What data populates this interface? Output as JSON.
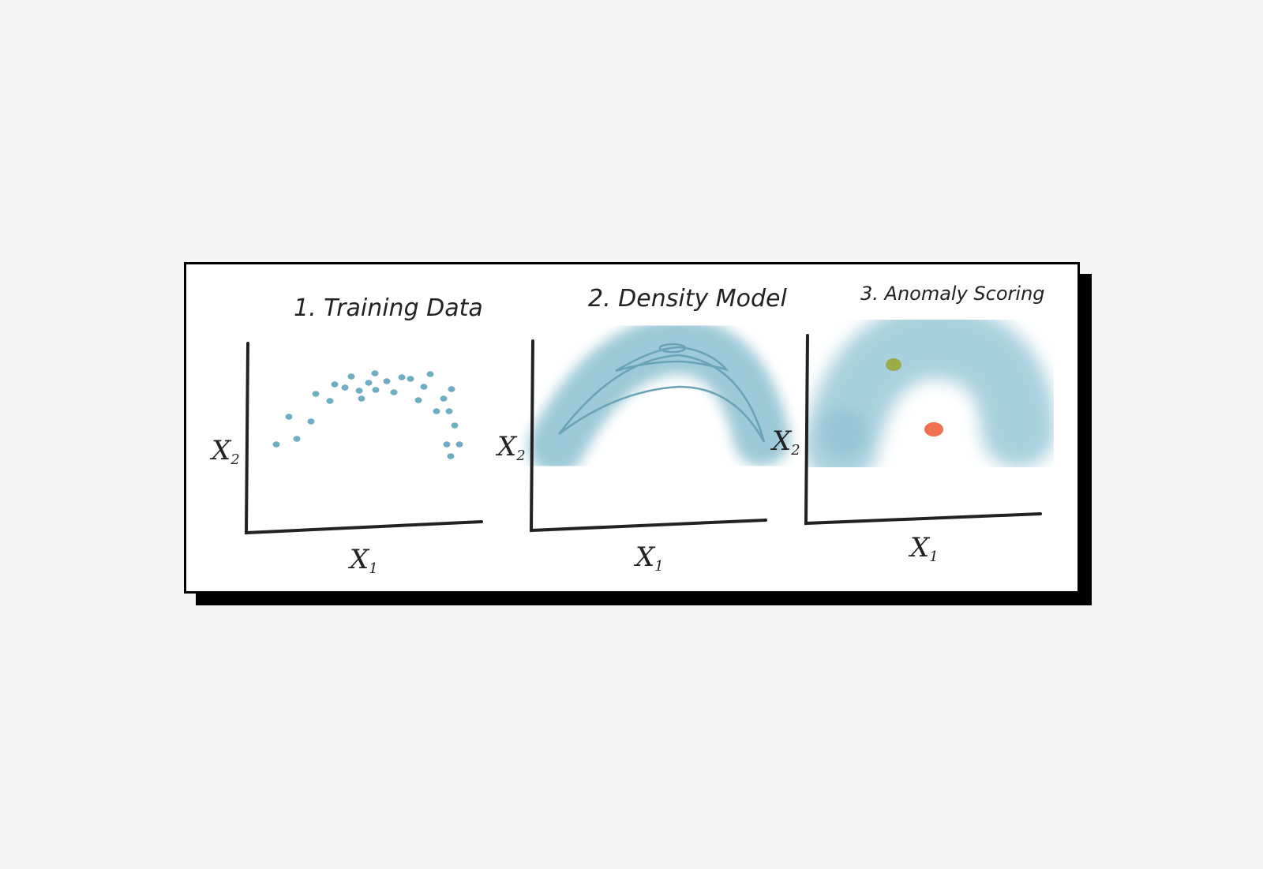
{
  "panels": [
    {
      "title": "1. Training Data",
      "xlabel": "X",
      "xsub": "1",
      "ylabel": "X",
      "ysub": "2"
    },
    {
      "title": "2. Density Model",
      "xlabel": "X",
      "xsub": "1",
      "ylabel": "X",
      "ysub": "2"
    },
    {
      "title": "3. Anomaly Scoring",
      "xlabel": "X",
      "xsub": "1",
      "ylabel": "X",
      "ysub": "2"
    }
  ],
  "colors": {
    "data": "#6fadc2",
    "density": "#9dc9d8",
    "contour": "#6aa3b6",
    "normal_point": "#9aab4a",
    "anomaly_point": "#f0704f",
    "axis": "#222222"
  }
}
